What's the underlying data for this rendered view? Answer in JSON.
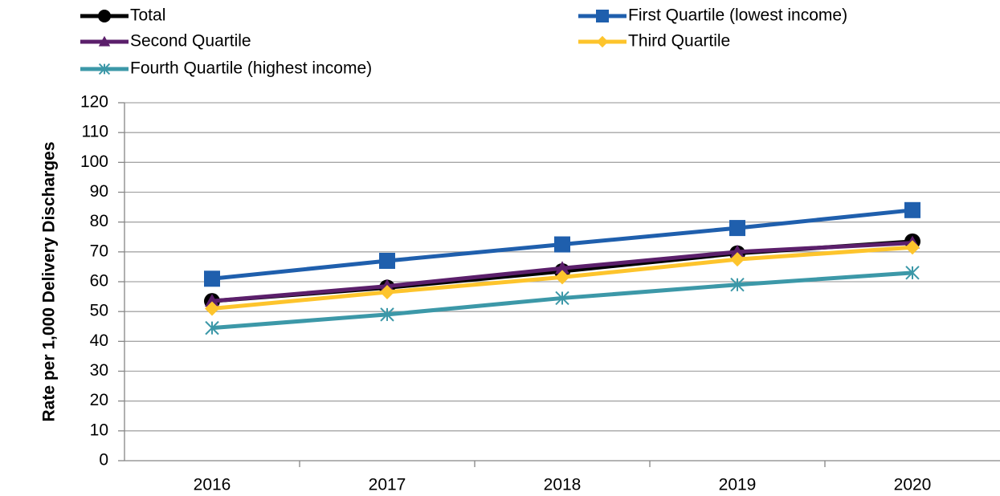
{
  "chart_data": {
    "type": "line",
    "y_label": "Rate per 1,000 Delivery Discharges",
    "categories": [
      "2016",
      "2017",
      "2018",
      "2019",
      "2020"
    ],
    "series": [
      {
        "name": "Total",
        "color": "#000000",
        "marker": "circle",
        "values": [
          53.5,
          58,
          63.5,
          69.5,
          73.5
        ]
      },
      {
        "name": "First Quartile (lowest income)",
        "color": "#1f5fad",
        "marker": "square",
        "values": [
          61,
          67,
          72.5,
          78,
          84
        ]
      },
      {
        "name": "Second Quartile",
        "color": "#5b1f6b",
        "marker": "triangle",
        "values": [
          53.5,
          58.5,
          64.5,
          70,
          73
        ]
      },
      {
        "name": "Third Quartile",
        "color": "#fdc42c",
        "marker": "diamond",
        "values": [
          51,
          56.5,
          61.5,
          67.5,
          71.5
        ]
      },
      {
        "name": "Fourth Quartile (highest income)",
        "color": "#3c98a8",
        "marker": "asterisk",
        "values": [
          44.5,
          49,
          54.5,
          59,
          63
        ]
      }
    ],
    "ylim": [
      0,
      120
    ],
    "yticks": [
      0,
      10,
      20,
      30,
      40,
      50,
      60,
      70,
      80,
      90,
      100,
      110,
      120
    ],
    "grid": true,
    "legend": "top"
  }
}
